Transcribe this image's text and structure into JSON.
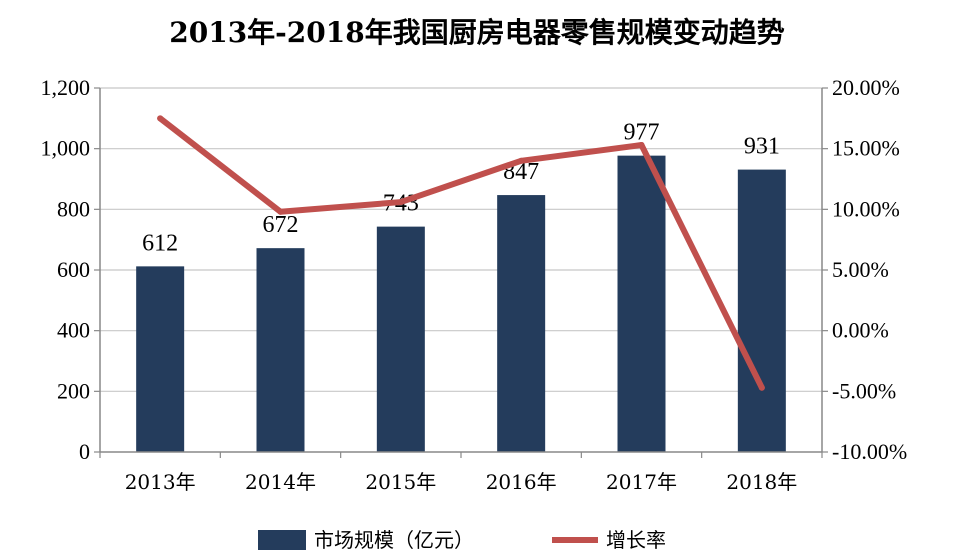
{
  "chart_data": {
    "type": "bar+line",
    "title": "2013年-2018年我国厨房电器零售规模变动趋势",
    "categories": [
      "2013年",
      "2014年",
      "2015年",
      "2016年",
      "2017年",
      "2018年"
    ],
    "series": [
      {
        "name": "市场规模（亿元）",
        "type": "bar",
        "axis": "left",
        "color": "#243c5c",
        "values": [
          612,
          672,
          743,
          847,
          977,
          931
        ],
        "data_labels": [
          "612",
          "672",
          "743",
          "847",
          "977",
          "931"
        ]
      },
      {
        "name": "增长率",
        "type": "line",
        "axis": "right",
        "color": "#c0504d",
        "values": [
          17.5,
          9.8,
          10.6,
          14.0,
          15.3,
          -4.7
        ]
      }
    ],
    "y_left": {
      "min": 0,
      "max": 1200,
      "ticks": [
        "0",
        "200",
        "400",
        "600",
        "800",
        "1,000",
        "1,200"
      ],
      "tick_values": [
        0,
        200,
        400,
        600,
        800,
        1000,
        1200
      ]
    },
    "y_right": {
      "min": -10,
      "max": 20,
      "ticks": [
        "-10.00%",
        "-5.00%",
        "0.00%",
        "5.00%",
        "10.00%",
        "15.00%",
        "20.00%"
      ],
      "tick_values": [
        -10,
        -5,
        0,
        5,
        10,
        15,
        20
      ]
    },
    "grid": "horizontal",
    "legend": "bottom"
  }
}
